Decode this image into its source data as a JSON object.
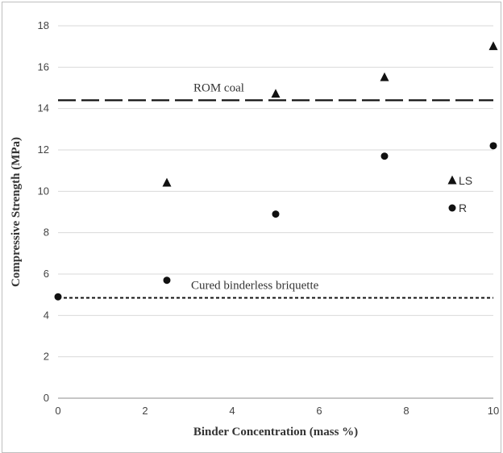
{
  "chart_data": {
    "type": "scatter",
    "xlabel": "Binder Concentration (mass %)",
    "ylabel": "Compressive Strength (MPa)",
    "xlim": [
      0,
      10
    ],
    "ylim": [
      0,
      18
    ],
    "x_ticks": [
      0,
      2,
      4,
      6,
      8,
      10
    ],
    "y_ticks": [
      0,
      2,
      4,
      6,
      8,
      10,
      12,
      14,
      16,
      18
    ],
    "grid": "horizontal",
    "series": [
      {
        "name": "LS",
        "marker": "triangle",
        "color": "#111111",
        "points": [
          {
            "x": 2.5,
            "y": 10.4
          },
          {
            "x": 5,
            "y": 14.7
          },
          {
            "x": 7.5,
            "y": 15.5
          },
          {
            "x": 10,
            "y": 17.0
          }
        ]
      },
      {
        "name": "R",
        "marker": "circle",
        "color": "#111111",
        "points": [
          {
            "x": 0,
            "y": 4.9
          },
          {
            "x": 2.5,
            "y": 5.7
          },
          {
            "x": 5,
            "y": 8.9
          },
          {
            "x": 7.5,
            "y": 11.7
          },
          {
            "x": 10,
            "y": 12.2
          }
        ]
      }
    ],
    "reference_lines": [
      {
        "label": "ROM coal",
        "y": 14.4,
        "style": "dashed"
      },
      {
        "label": "Cured binderless briquette",
        "y": 4.85,
        "style": "dotted"
      }
    ],
    "legend_placement": "inside-right",
    "grid_color": "#d9d9d9",
    "marker_color": "#111111"
  }
}
